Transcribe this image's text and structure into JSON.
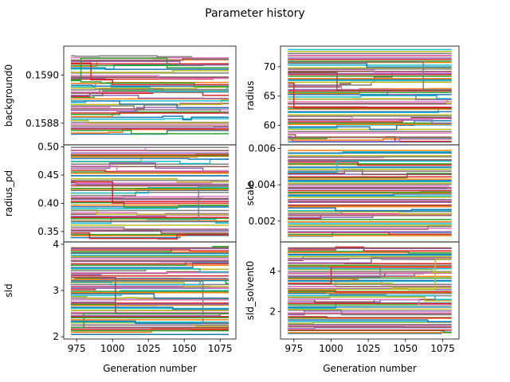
{
  "figure": {
    "title": "Parameter history"
  },
  "colors": [
    "#1f77b4",
    "#ff7f0e",
    "#2ca02c",
    "#d62728",
    "#9467bd",
    "#8c564b",
    "#e377c2",
    "#7f7f7f",
    "#bcbd22",
    "#17becf"
  ],
  "chart_data": [
    {
      "type": "line",
      "ylabel": "background0",
      "xlabel": "",
      "xlim": [
        966,
        1086
      ],
      "ylim": [
        0.15871,
        0.15912
      ],
      "xticks": [],
      "yticks": [
        0.1588,
        0.159
      ],
      "ytick_labels": [
        "0.1588",
        "0.1590"
      ],
      "x_start": 971,
      "x_end": 1081,
      "series_count": 48,
      "y_range": [
        0.15875,
        0.15908
      ],
      "step_density": 0.22,
      "highlight": [
        {
          "color": "#d62728",
          "x": [
            971,
            985,
            985,
            1000,
            1000,
            1081
          ],
          "y": [
            0.15905,
            0.15905,
            0.15898,
            0.15898,
            0.15896,
            0.15896
          ]
        },
        {
          "color": "#2ca02c",
          "x": [
            971,
            978,
            978,
            1038,
            1038,
            1081
          ],
          "y": [
            0.15898,
            0.15898,
            0.15907,
            0.15907,
            0.15903,
            0.15903
          ]
        }
      ]
    },
    {
      "type": "line",
      "ylabel": "radius",
      "xlabel": "",
      "xlim": [
        966,
        1086
      ],
      "ylim": [
        56.7,
        73.5
      ],
      "xticks": [],
      "yticks": [
        60,
        65,
        70
      ],
      "ytick_labels": [
        "60",
        "65",
        "70"
      ],
      "x_start": 971,
      "x_end": 1081,
      "series_count": 60,
      "y_range": [
        57.0,
        73.0
      ],
      "step_density": 0.08,
      "highlight": [
        {
          "color": "#d62728",
          "x": [
            971,
            975,
            975,
            1081
          ],
          "y": [
            67.2,
            67.2,
            63.0,
            63.0
          ]
        },
        {
          "color": "#8c564b",
          "x": [
            971,
            1004,
            1004,
            1081
          ],
          "y": [
            69.0,
            69.0,
            66.0,
            66.0
          ]
        },
        {
          "color": "#7f7f7f",
          "x": [
            971,
            1062,
            1062,
            1081
          ],
          "y": [
            70.8,
            70.8,
            66.1,
            66.1
          ]
        }
      ]
    },
    {
      "type": "line",
      "ylabel": "radius_pd",
      "xlabel": "",
      "xlim": [
        966,
        1086
      ],
      "ylim": [
        0.3315,
        0.5035
      ],
      "xticks": [],
      "yticks": [
        0.35,
        0.4,
        0.45,
        0.5
      ],
      "ytick_labels": [
        "0.35",
        "0.40",
        "0.45",
        "0.50"
      ],
      "x_start": 971,
      "x_end": 1081,
      "series_count": 58,
      "y_range": [
        0.337,
        0.499
      ],
      "step_density": 0.12,
      "highlight": [
        {
          "color": "#d62728",
          "x": [
            971,
            1000,
            1000,
            1081
          ],
          "y": [
            0.438,
            0.438,
            0.4,
            0.4
          ]
        },
        {
          "color": "#7f7f7f",
          "x": [
            971,
            1060,
            1060,
            1081
          ],
          "y": [
            0.368,
            0.368,
            0.43,
            0.43
          ]
        }
      ]
    },
    {
      "type": "line",
      "ylabel": "scale",
      "xlabel": "",
      "xlim": [
        966,
        1086
      ],
      "ylim": [
        0.00085,
        0.0062
      ],
      "xticks": [],
      "yticks": [
        0.002,
        0.004,
        0.006
      ],
      "ytick_labels": [
        "0.002",
        "0.004",
        "0.006"
      ],
      "x_start": 971,
      "x_end": 1081,
      "series_count": 62,
      "y_range": [
        0.0011,
        0.0059
      ],
      "step_density": 0.06,
      "highlight": [
        {
          "color": "#17becf",
          "x": [
            971,
            1004,
            1004,
            1081
          ],
          "y": [
            0.0047,
            0.0047,
            0.0053,
            0.0053
          ]
        }
      ]
    },
    {
      "type": "line",
      "ylabel": "sld",
      "xlabel": "Generation number",
      "xlim": [
        966,
        1086
      ],
      "ylim": [
        1.95,
        4.05
      ],
      "xticks": [
        975,
        1000,
        1025,
        1050,
        1075
      ],
      "xtick_labels": [
        "975",
        "1000",
        "1025",
        "1050",
        "1075"
      ],
      "yticks": [
        2,
        3,
        4
      ],
      "ytick_labels": [
        "2",
        "3",
        "4"
      ],
      "x_start": 971,
      "x_end": 1081,
      "series_count": 66,
      "y_range": [
        2.05,
        3.95
      ],
      "step_density": 0.1,
      "highlight": [
        {
          "color": "#8c564b",
          "x": [
            971,
            1002,
            1002,
            1081
          ],
          "y": [
            3.28,
            3.28,
            2.5,
            2.5
          ]
        },
        {
          "color": "#7f7f7f",
          "x": [
            971,
            1063,
            1063,
            1081
          ],
          "y": [
            3.2,
            3.2,
            2.3,
            2.3
          ]
        },
        {
          "color": "#2ca02c",
          "x": [
            971,
            980,
            980,
            1081
          ],
          "y": [
            2.2,
            2.2,
            2.5,
            2.5
          ]
        }
      ]
    },
    {
      "type": "line",
      "ylabel": "sld_solvent0",
      "xlabel": "Generation number",
      "xlim": [
        966,
        1086
      ],
      "ylim": [
        0.65,
        5.45
      ],
      "xticks": [
        975,
        1000,
        1025,
        1050,
        1075
      ],
      "xtick_labels": [
        "975",
        "1000",
        "1025",
        "1050",
        "1075"
      ],
      "yticks": [
        2,
        4
      ],
      "ytick_labels": [
        "2",
        "4"
      ],
      "x_start": 971,
      "x_end": 1081,
      "series_count": 66,
      "y_range": [
        0.9,
        5.2
      ],
      "step_density": 0.1,
      "highlight": [
        {
          "color": "#d62728",
          "x": [
            971,
            1000,
            1000,
            1081
          ],
          "y": [
            3.4,
            3.4,
            4.2,
            4.2
          ]
        },
        {
          "color": "#7f7f7f",
          "x": [
            971,
            1033,
            1033,
            1081
          ],
          "y": [
            3.7,
            3.7,
            4.3,
            4.3
          ]
        },
        {
          "color": "#bcbd22",
          "x": [
            971,
            1070,
            1070,
            1081
          ],
          "y": [
            3.1,
            3.1,
            4.6,
            4.6
          ]
        }
      ]
    }
  ]
}
